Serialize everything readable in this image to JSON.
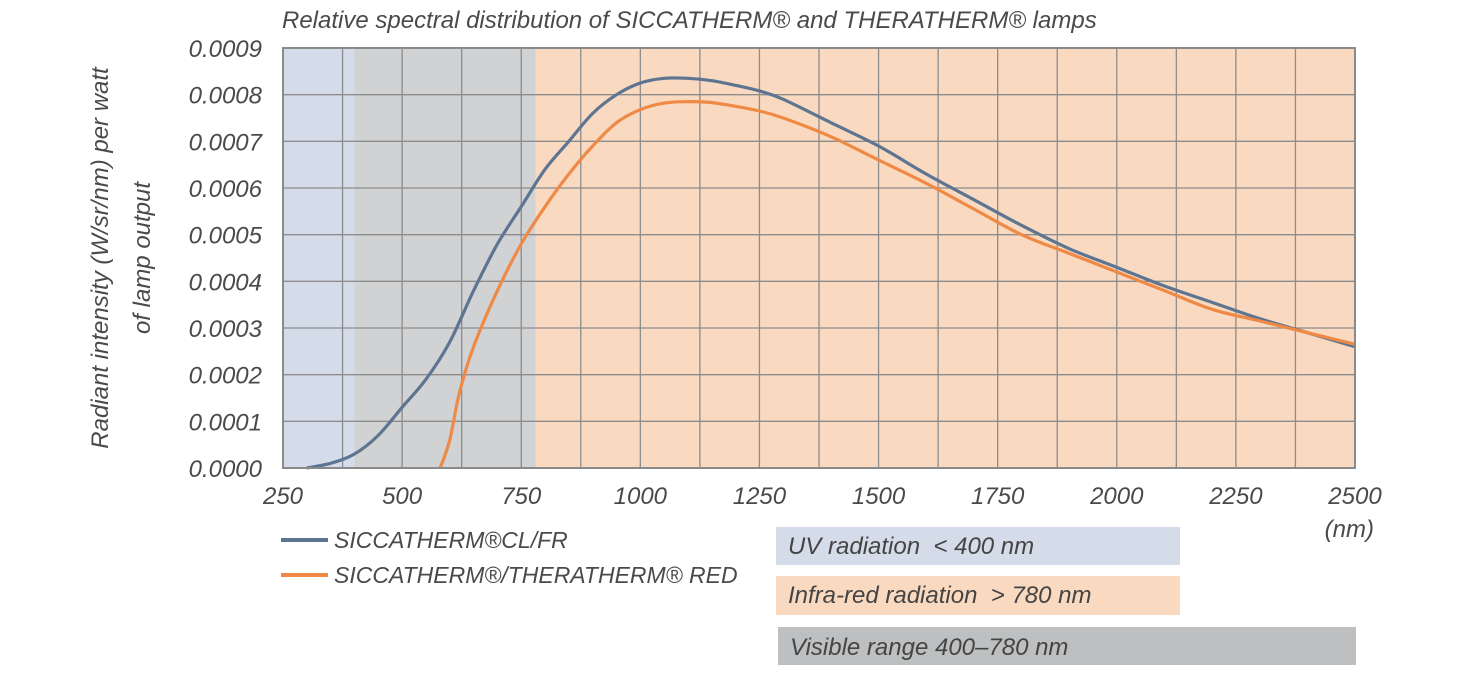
{
  "chart_data": {
    "type": "line",
    "title": "Relative spectral distribution of SICCATHERM® and THERATHERM® lamps",
    "ylabel_line1": "Radiant intensity (W/sr/nm) per watt",
    "ylabel_line2": "of lamp output",
    "xunit": "(nm)",
    "xlim": [
      250,
      2500
    ],
    "ylim": [
      0,
      0.0009
    ],
    "xticks": [
      250,
      500,
      750,
      1000,
      1250,
      1500,
      1750,
      2000,
      2250,
      2500
    ],
    "yticks": [
      "0.0000",
      "0.0001",
      "0.0002",
      "0.0003",
      "0.0004",
      "0.0005",
      "0.0006",
      "0.0007",
      "0.0008",
      "0.0009"
    ],
    "grid": true,
    "regions": [
      {
        "name": "UV radiation  < 400 nm",
        "from": 250,
        "to": 400,
        "color": "#d4dce9"
      },
      {
        "name": "Visible range 400–780 nm",
        "from": 400,
        "to": 780,
        "color": "#d1d2d4"
      },
      {
        "name": "Infra-red radiation  > 780 nm",
        "from": 780,
        "to": 2500,
        "color": "#fad9c1"
      }
    ],
    "series": [
      {
        "name": "SICCATHERM®CL/FR",
        "color": "#5e7592",
        "x": [
          300,
          350,
          400,
          450,
          500,
          550,
          600,
          650,
          700,
          750,
          800,
          850,
          900,
          950,
          1000,
          1050,
          1100,
          1150,
          1200,
          1250,
          1300,
          1400,
          1500,
          1600,
          1700,
          1800,
          1900,
          2000,
          2100,
          2200,
          2300,
          2400,
          2500
        ],
        "y": [
          0.0,
          1e-05,
          3e-05,
          7e-05,
          0.00013,
          0.00019,
          0.00027,
          0.00038,
          0.00048,
          0.00056,
          0.00064,
          0.0007,
          0.00076,
          0.0008,
          0.000825,
          0.000835,
          0.000835,
          0.00083,
          0.00082,
          0.000808,
          0.00079,
          0.00074,
          0.00069,
          0.00063,
          0.000575,
          0.00052,
          0.00047,
          0.00043,
          0.00039,
          0.000355,
          0.00032,
          0.00029,
          0.00026
        ]
      },
      {
        "name": "SICCATHERM®/THERATHERM® RED",
        "color": "#ee8a45",
        "x": [
          580,
          600,
          620,
          650,
          700,
          750,
          800,
          850,
          900,
          950,
          1000,
          1050,
          1100,
          1150,
          1200,
          1250,
          1300,
          1400,
          1500,
          1600,
          1700,
          1800,
          1900,
          2000,
          2100,
          2200,
          2300,
          2400,
          2500
        ],
        "y": [
          0.0,
          6e-05,
          0.00016,
          0.00026,
          0.00038,
          0.00048,
          0.00056,
          0.00063,
          0.00069,
          0.00074,
          0.000768,
          0.000782,
          0.000785,
          0.000783,
          0.000775,
          0.000765,
          0.00075,
          0.00071,
          0.00066,
          0.00061,
          0.000555,
          0.0005,
          0.00046,
          0.00042,
          0.00038,
          0.00034,
          0.000315,
          0.00029,
          0.000265
        ]
      }
    ]
  },
  "legend": {
    "uv": "UV radiation  < 400 nm",
    "ir": "Infra-red radiation  > 780 nm",
    "visible": "Visible range 400–780 nm"
  }
}
